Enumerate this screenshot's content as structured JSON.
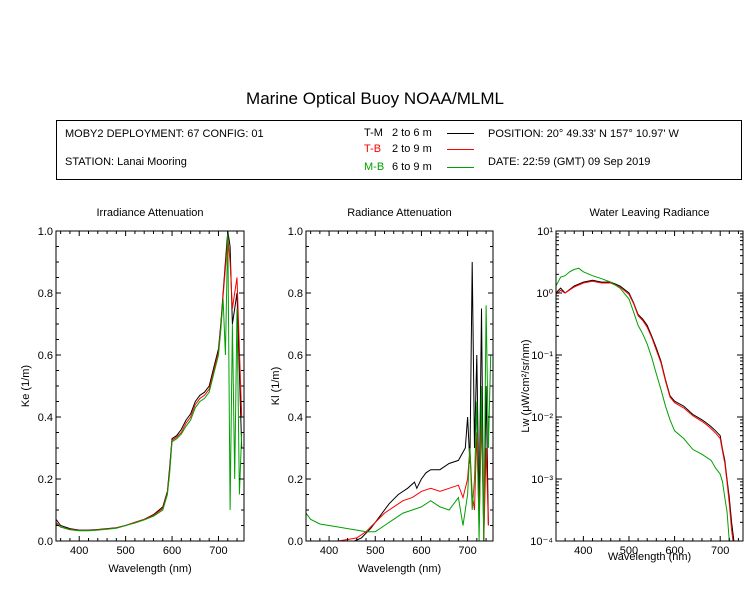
{
  "header": {
    "title": "Marine Optical Buoy NOAA/MLML",
    "deployment": "MOBY2 DEPLOYMENT: 67 CONFIG: 01",
    "station": "STATION: Lanai Mooring",
    "position": "POSITION: 20° 49.33' N   157° 10.97' W",
    "date": "DATE: 22:59 (GMT) 09 Sep 2019"
  },
  "legend": [
    {
      "code": "T-M",
      "range": "2 to 6  m",
      "color": "#000000"
    },
    {
      "code": "T-B",
      "range": "2 to 9  m",
      "color": "#ff0000"
    },
    {
      "code": "M-B",
      "range": "6 to 9  m",
      "color": "#00a000"
    }
  ],
  "chart_data": [
    {
      "type": "line",
      "title": "Irradiance Attenuation",
      "xlabel": "Wavelength (nm)",
      "ylabel": "Ke  (1/m)",
      "xlim": [
        350,
        755
      ],
      "ylim": [
        0,
        1.0
      ],
      "xticks": [
        400,
        500,
        600,
        700
      ],
      "yticks": [
        0.0,
        0.2,
        0.4,
        0.6,
        0.8,
        1.0
      ],
      "ytick_labels": [
        "0.0",
        "0.2",
        "0.4",
        "0.6",
        "0.8",
        "1.0"
      ],
      "series": [
        {
          "name": "T-M",
          "color": "#000000",
          "x": [
            350,
            360,
            380,
            400,
            420,
            440,
            460,
            480,
            500,
            520,
            540,
            560,
            580,
            590,
            595,
            600,
            610,
            620,
            630,
            640,
            650,
            660,
            670,
            680,
            690,
            700,
            705,
            710,
            715,
            720,
            725,
            730,
            740,
            750
          ],
          "y": [
            0.07,
            0.05,
            0.04,
            0.035,
            0.035,
            0.037,
            0.04,
            0.043,
            0.05,
            0.06,
            0.07,
            0.085,
            0.11,
            0.16,
            0.24,
            0.33,
            0.34,
            0.36,
            0.39,
            0.41,
            0.45,
            0.47,
            0.48,
            0.5,
            0.56,
            0.62,
            0.7,
            0.8,
            0.9,
            1.0,
            0.95,
            0.7,
            0.8,
            0.3
          ]
        },
        {
          "name": "T-B",
          "color": "#ff0000",
          "x": [
            350,
            360,
            380,
            400,
            420,
            440,
            460,
            480,
            500,
            520,
            540,
            560,
            580,
            590,
            595,
            600,
            610,
            620,
            630,
            640,
            650,
            660,
            670,
            680,
            690,
            700,
            705,
            710,
            715,
            720,
            725,
            730,
            740,
            750
          ],
          "y": [
            0.06,
            0.045,
            0.038,
            0.034,
            0.034,
            0.036,
            0.039,
            0.042,
            0.05,
            0.06,
            0.07,
            0.083,
            0.105,
            0.155,
            0.23,
            0.325,
            0.335,
            0.35,
            0.38,
            0.4,
            0.44,
            0.46,
            0.47,
            0.49,
            0.55,
            0.61,
            0.69,
            0.79,
            0.88,
            0.98,
            0.9,
            0.75,
            0.85,
            0.4
          ]
        },
        {
          "name": "M-B",
          "color": "#00a000",
          "x": [
            350,
            360,
            380,
            400,
            420,
            440,
            460,
            480,
            500,
            520,
            540,
            560,
            580,
            590,
            595,
            600,
            610,
            620,
            630,
            640,
            650,
            660,
            670,
            680,
            690,
            700,
            705,
            710,
            715,
            720,
            725,
            730,
            735,
            740,
            745,
            750
          ],
          "y": [
            0.055,
            0.045,
            0.036,
            0.033,
            0.033,
            0.035,
            0.038,
            0.041,
            0.05,
            0.058,
            0.068,
            0.08,
            0.1,
            0.15,
            0.22,
            0.32,
            0.33,
            0.345,
            0.37,
            0.39,
            0.43,
            0.45,
            0.46,
            0.48,
            0.54,
            0.6,
            0.68,
            0.78,
            0.6,
            1.0,
            0.1,
            0.7,
            0.2,
            0.75,
            0.15,
            0.35
          ]
        }
      ]
    },
    {
      "type": "line",
      "title": "Radiance Attenuation",
      "xlabel": "Wavelength (nm)",
      "ylabel": "Kl  (1/m)",
      "xlim": [
        350,
        755
      ],
      "ylim": [
        0,
        1.0
      ],
      "xticks": [
        400,
        500,
        600,
        700
      ],
      "yticks": [
        0.0,
        0.2,
        0.4,
        0.6,
        0.8,
        1.0
      ],
      "ytick_labels": [
        "0.0",
        "0.2",
        "0.4",
        "0.6",
        "0.8",
        "1.0"
      ],
      "series": [
        {
          "name": "T-M",
          "color": "#000000",
          "x": [
            455,
            470,
            490,
            510,
            530,
            550,
            570,
            585,
            590,
            600,
            610,
            620,
            640,
            660,
            680,
            695,
            700,
            705,
            710,
            715,
            720,
            725,
            730,
            735,
            740,
            745
          ],
          "y": [
            0.0,
            0.01,
            0.04,
            0.08,
            0.12,
            0.15,
            0.17,
            0.19,
            0.17,
            0.2,
            0.22,
            0.23,
            0.23,
            0.25,
            0.26,
            0.3,
            0.4,
            0.25,
            0.9,
            0.3,
            0.6,
            0.1,
            0.75,
            0.0,
            0.5,
            0.05
          ]
        },
        {
          "name": "T-B",
          "color": "#ff0000",
          "x": [
            380,
            400,
            420,
            440,
            460,
            480,
            500,
            520,
            540,
            560,
            580,
            600,
            620,
            640,
            660,
            680,
            690,
            700,
            705,
            710,
            715,
            720,
            725,
            730,
            735,
            740,
            745
          ],
          "y": [
            0.0,
            0.0,
            0.0,
            0.005,
            0.01,
            0.03,
            0.06,
            0.09,
            0.11,
            0.13,
            0.14,
            0.16,
            0.17,
            0.16,
            0.17,
            0.18,
            0.14,
            0.2,
            0.3,
            0.15,
            0.1,
            0.35,
            0.05,
            0.4,
            0.0,
            0.3,
            0.05
          ]
        },
        {
          "name": "M-B",
          "color": "#00a000",
          "x": [
            350,
            360,
            380,
            400,
            420,
            440,
            460,
            480,
            500,
            520,
            540,
            560,
            580,
            600,
            620,
            640,
            660,
            680,
            690,
            700,
            705,
            710,
            715,
            720,
            725,
            730,
            735,
            740,
            745,
            750
          ],
          "y": [
            0.09,
            0.07,
            0.055,
            0.05,
            0.045,
            0.04,
            0.035,
            0.03,
            0.03,
            0.05,
            0.07,
            0.09,
            0.1,
            0.11,
            0.13,
            0.11,
            0.1,
            0.14,
            0.05,
            0.15,
            0.3,
            0.1,
            0.2,
            0.45,
            0.0,
            0.5,
            0.0,
            0.76,
            0.3,
            0.6
          ]
        }
      ]
    },
    {
      "type": "line",
      "title": "Water Leaving Radiance",
      "xlabel": "Wavelength (nm)",
      "ylabel": "Lw  (μW/cm²/sr/nm)",
      "scale": "log",
      "xlim": [
        340,
        750
      ],
      "ylim": [
        0.0001,
        10
      ],
      "xticks": [
        400,
        500,
        600,
        700
      ],
      "ytick_labels": [
        "10¹",
        "10⁰",
        "10⁻¹",
        "10⁻²",
        "10⁻³",
        "10⁻⁴"
      ],
      "series": [
        {
          "name": "T-M",
          "color": "#000000",
          "x": [
            340,
            350,
            360,
            380,
            400,
            420,
            440,
            460,
            480,
            500,
            510,
            520,
            530,
            540,
            550,
            560,
            570,
            580,
            590,
            600,
            620,
            640,
            660,
            670,
            680,
            690,
            700,
            705,
            710,
            715,
            720,
            725,
            730
          ],
          "y": [
            1.0,
            1.2,
            1.0,
            1.3,
            1.5,
            1.6,
            1.5,
            1.5,
            1.3,
            1.0,
            0.7,
            0.45,
            0.38,
            0.3,
            0.2,
            0.13,
            0.08,
            0.04,
            0.022,
            0.018,
            0.015,
            0.011,
            0.009,
            0.008,
            0.007,
            0.006,
            0.005,
            0.003,
            0.002,
            0.001,
            0.0005,
            0.0002,
            0.0001
          ]
        },
        {
          "name": "T-B",
          "color": "#ff0000",
          "x": [
            340,
            350,
            360,
            380,
            400,
            420,
            440,
            460,
            480,
            500,
            510,
            520,
            530,
            540,
            550,
            560,
            570,
            580,
            590,
            600,
            620,
            640,
            660,
            670,
            680,
            690,
            700,
            705,
            710,
            715,
            720,
            725,
            728
          ],
          "y": [
            0.95,
            1.1,
            1.0,
            1.25,
            1.45,
            1.55,
            1.45,
            1.45,
            1.25,
            0.95,
            0.68,
            0.43,
            0.36,
            0.28,
            0.19,
            0.12,
            0.075,
            0.038,
            0.021,
            0.017,
            0.014,
            0.0105,
            0.0085,
            0.0075,
            0.0065,
            0.0055,
            0.0045,
            0.0028,
            0.0018,
            0.0009,
            0.0004,
            0.00015,
            0.0001
          ]
        },
        {
          "name": "M-B",
          "color": "#00a000",
          "x": [
            340,
            350,
            360,
            370,
            380,
            390,
            400,
            420,
            440,
            460,
            480,
            500,
            510,
            520,
            530,
            540,
            550,
            560,
            570,
            580,
            590,
            600,
            620,
            640,
            660,
            680,
            690,
            700,
            705,
            710,
            715,
            720
          ],
          "y": [
            1.3,
            1.8,
            1.9,
            2.2,
            2.4,
            2.5,
            2.2,
            1.9,
            1.7,
            1.5,
            1.2,
            0.8,
            0.5,
            0.3,
            0.22,
            0.15,
            0.09,
            0.05,
            0.028,
            0.015,
            0.009,
            0.006,
            0.0045,
            0.003,
            0.0025,
            0.002,
            0.0015,
            0.0012,
            0.0009,
            0.0005,
            0.0003,
            0.0001
          ]
        }
      ]
    }
  ]
}
